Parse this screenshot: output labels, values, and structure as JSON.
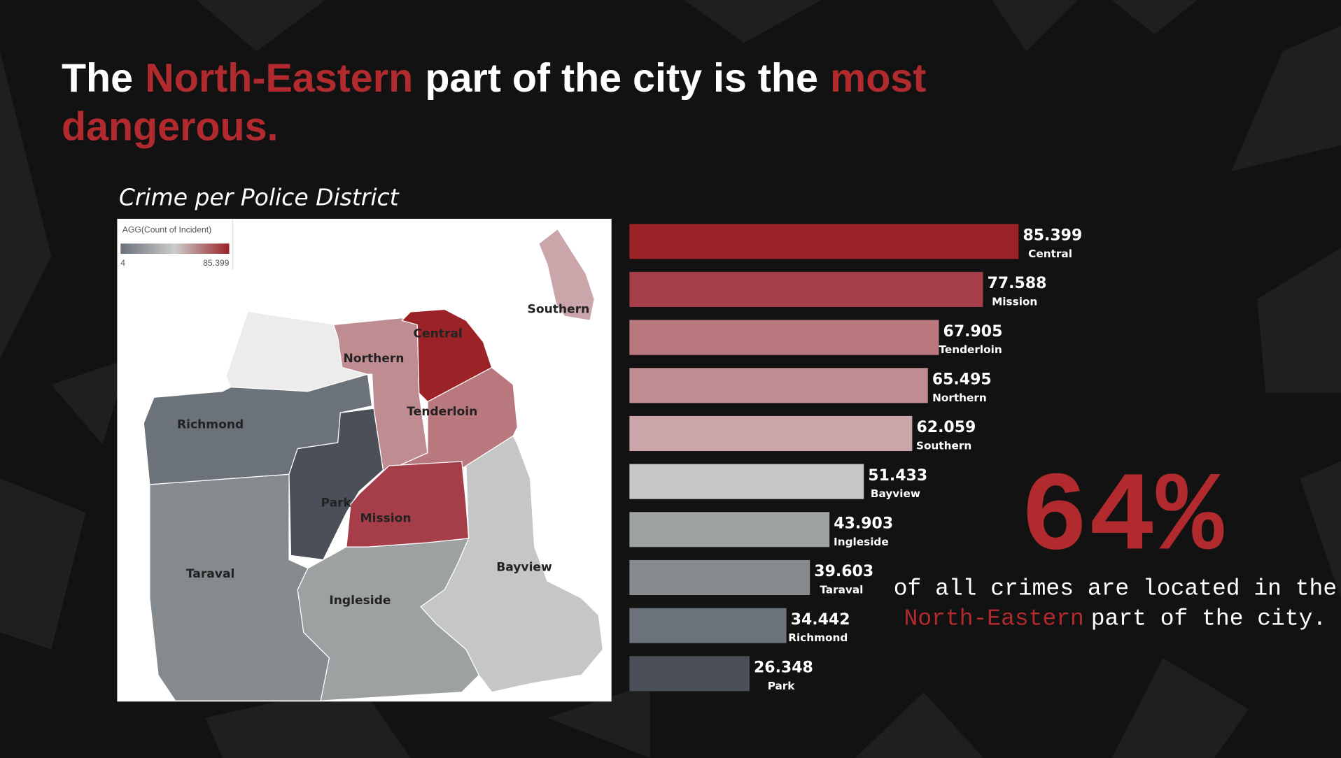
{
  "headline_lines": [
    [
      {
        "text": "The",
        "highlight": false
      },
      {
        "text": "North-Eastern",
        "highlight": true
      },
      {
        "text": "part of the city is the",
        "highlight": false
      },
      {
        "text": "most",
        "highlight": true
      }
    ],
    [
      {
        "text": "dangerous.",
        "highlight": true
      }
    ]
  ],
  "map": {
    "legend_title": "AGG(Count of Incident)",
    "legend_min": 4,
    "legend_max": 85.399
  },
  "chart_data": {
    "type": "bar",
    "orientation": "horizontal",
    "title": "Crime per Police District",
    "categories": [
      "Central",
      "Mission",
      "Tenderloin",
      "Northern",
      "Southern",
      "Bayview",
      "Ingleside",
      "Taraval",
      "Richmond",
      "Park"
    ],
    "values": [
      85.399,
      77.588,
      67.905,
      65.495,
      62.059,
      51.433,
      43.903,
      39.603,
      34.442,
      26.348
    ],
    "colors": [
      "#9b2226",
      "#a63e4a",
      "#b8787e",
      "#bf8d91",
      "#caa6aa",
      "#c5c6c6",
      "#9da1a2",
      "#858a8e",
      "#6b727a",
      "#4b4f58"
    ]
  },
  "stat": {
    "value": "64%",
    "caption_lines": [
      [
        {
          "text": "of all crimes are located in the",
          "highlight": false
        }
      ],
      [
        {
          "text": "North-Eastern",
          "highlight": true
        },
        {
          "text": "part of the city.",
          "highlight": false
        }
      ]
    ]
  }
}
